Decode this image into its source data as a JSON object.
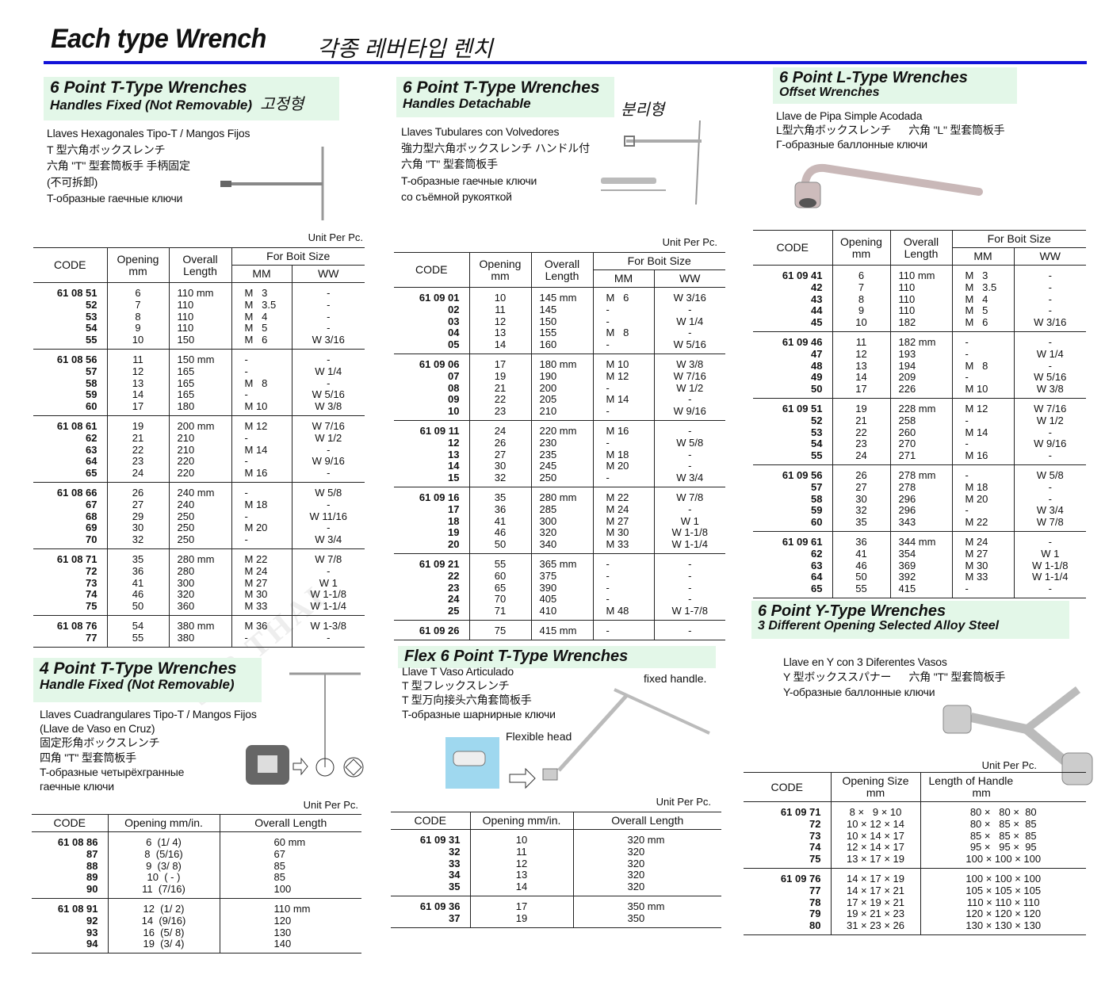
{
  "header": {
    "title": "Each type Wrench",
    "title_ko": "각종 레버타입 렌치"
  },
  "watermark": "32B THAI",
  "colors": {
    "rule": "#1212d8",
    "section_bg": "#e3f7e8"
  },
  "common": {
    "unit": "Unit Per Pc.",
    "code": "CODE",
    "opening": "Opening",
    "mm": "mm",
    "overall": "Overall",
    "length": "Length",
    "bolt": "For Boit Size",
    "MM": "MM",
    "WW": "WW",
    "opening_mmin": "Opening mm/in.",
    "overall_length": "Overall Length"
  },
  "s1": {
    "title": "6 Point T-Type Wrenches",
    "subtitle": "Handles Fixed (Not Removable)",
    "ko": "고정형",
    "desc": [
      "Llaves Hexagonales Tipo-T / Mangos Fijos",
      "T 型六角ボックスレンチ",
      "六角 \"T\" 型套筒板手 手柄固定",
      "(不可拆卸)",
      "T-образные гаечные ключи"
    ],
    "groups": [
      [
        [
          "61 08 51",
          "6",
          "110 mm",
          "M   3",
          "-"
        ],
        [
          "52",
          "7",
          "110",
          "M   3.5",
          "-"
        ],
        [
          "53",
          "8",
          "110",
          "M   4",
          "-"
        ],
        [
          "54",
          "9",
          "110",
          "M   5",
          "-"
        ],
        [
          "55",
          "10",
          "150",
          "M   6",
          "W 3/16"
        ]
      ],
      [
        [
          "61 08 56",
          "11",
          "150 mm",
          "-",
          "-"
        ],
        [
          "57",
          "12",
          "165",
          "-",
          "W 1/4"
        ],
        [
          "58",
          "13",
          "165",
          "M   8",
          "-"
        ],
        [
          "59",
          "14",
          "165",
          "-",
          "W 5/16"
        ],
        [
          "60",
          "17",
          "180",
          "M 10",
          "W 3/8"
        ]
      ],
      [
        [
          "61 08 61",
          "19",
          "200 mm",
          "M 12",
          "W 7/16"
        ],
        [
          "62",
          "21",
          "210",
          "-",
          "W 1/2"
        ],
        [
          "63",
          "22",
          "210",
          "M 14",
          "-"
        ],
        [
          "64",
          "23",
          "220",
          "-",
          "W 9/16"
        ],
        [
          "65",
          "24",
          "220",
          "M 16",
          "-"
        ]
      ],
      [
        [
          "61 08 66",
          "26",
          "240 mm",
          "-",
          "W 5/8"
        ],
        [
          "67",
          "27",
          "240",
          "M 18",
          "-"
        ],
        [
          "68",
          "29",
          "250",
          "-",
          "W 11/16"
        ],
        [
          "69",
          "30",
          "250",
          "M 20",
          "-"
        ],
        [
          "70",
          "32",
          "250",
          "-",
          "W 3/4"
        ]
      ],
      [
        [
          "61 08 71",
          "35",
          "280 mm",
          "M 22",
          "W 7/8"
        ],
        [
          "72",
          "36",
          "280",
          "M 24",
          "-"
        ],
        [
          "73",
          "41",
          "300",
          "M 27",
          "W 1"
        ],
        [
          "74",
          "46",
          "320",
          "M 30",
          "W 1-1/8"
        ],
        [
          "75",
          "50",
          "360",
          "M 33",
          "W 1-1/4"
        ]
      ],
      [
        [
          "61 08 76",
          "54",
          "380 mm",
          "M 36",
          "W 1-3/8"
        ],
        [
          "77",
          "55",
          "380",
          "-",
          "-"
        ]
      ]
    ]
  },
  "s2": {
    "title": "6 Point T-Type Wrenches",
    "subtitle": "Handles Detachable",
    "ko": "분리형",
    "desc": [
      "Llaves Tubulares con Volvedores",
      "強力型六角ボックスレンチ ハンドル付",
      "六角 \"T\" 型套筒板手",
      "T-образные гаечные ключи",
      "со съёмной рукояткой"
    ],
    "groups": [
      [
        [
          "61 09 01",
          "10",
          "145 mm",
          "M   6",
          "W 3/16"
        ],
        [
          "02",
          "11",
          "145",
          "-",
          "-"
        ],
        [
          "03",
          "12",
          "150",
          "-",
          "W 1/4"
        ],
        [
          "04",
          "13",
          "155",
          "M   8",
          "-"
        ],
        [
          "05",
          "14",
          "160",
          "-",
          "W 5/16"
        ]
      ],
      [
        [
          "61 09 06",
          "17",
          "180 mm",
          "M 10",
          "W 3/8"
        ],
        [
          "07",
          "19",
          "190",
          "M 12",
          "W 7/16"
        ],
        [
          "08",
          "21",
          "200",
          "-",
          "W 1/2"
        ],
        [
          "09",
          "22",
          "205",
          "M 14",
          "-"
        ],
        [
          "10",
          "23",
          "210",
          "-",
          "W 9/16"
        ]
      ],
      [
        [
          "61 09 11",
          "24",
          "220 mm",
          "M 16",
          "-"
        ],
        [
          "12",
          "26",
          "230",
          "-",
          "W 5/8"
        ],
        [
          "13",
          "27",
          "235",
          "M 18",
          "-"
        ],
        [
          "14",
          "30",
          "245",
          "M 20",
          "-"
        ],
        [
          "15",
          "32",
          "250",
          "-",
          "W 3/4"
        ]
      ],
      [
        [
          "61 09 16",
          "35",
          "280 mm",
          "M 22",
          "W 7/8"
        ],
        [
          "17",
          "36",
          "285",
          "M 24",
          "-"
        ],
        [
          "18",
          "41",
          "300",
          "M 27",
          "W 1"
        ],
        [
          "19",
          "46",
          "320",
          "M 30",
          "W 1-1/8"
        ],
        [
          "20",
          "50",
          "340",
          "M 33",
          "W 1-1/4"
        ]
      ],
      [
        [
          "61 09 21",
          "55",
          "365 mm",
          "-",
          "-"
        ],
        [
          "22",
          "60",
          "375",
          "-",
          "-"
        ],
        [
          "23",
          "65",
          "390",
          "-",
          "-"
        ],
        [
          "24",
          "70",
          "405",
          "-",
          "-"
        ],
        [
          "25",
          "71",
          "410",
          "M 48",
          "W 1-7/8"
        ]
      ],
      [
        [
          "61 09 26",
          "75",
          "415 mm",
          "-",
          "-"
        ]
      ]
    ]
  },
  "s3": {
    "title": "6 Point L-Type Wrenches",
    "subtitle": "Offset Wrenches",
    "desc": [
      "Llave de Pipa Simple Acodada",
      "L型六角ボックスレンチ      六角 \"L\" 型套筒板手",
      "Г-образные баллонные ключи"
    ],
    "groups": [
      [
        [
          "61 09 41",
          "6",
          "110 mm",
          "M   3",
          "-"
        ],
        [
          "42",
          "7",
          "110",
          "M   3.5",
          "-"
        ],
        [
          "43",
          "8",
          "110",
          "M   4",
          "-"
        ],
        [
          "44",
          "9",
          "110",
          "M   5",
          "-"
        ],
        [
          "45",
          "10",
          "182",
          "M   6",
          "W 3/16"
        ]
      ],
      [
        [
          "61 09 46",
          "11",
          "182 mm",
          "-",
          "-"
        ],
        [
          "47",
          "12",
          "193",
          "-",
          "W 1/4"
        ],
        [
          "48",
          "13",
          "194",
          "M   8",
          "-"
        ],
        [
          "49",
          "14",
          "209",
          "-",
          "W 5/16"
        ],
        [
          "50",
          "17",
          "226",
          "M 10",
          "W 3/8"
        ]
      ],
      [
        [
          "61 09 51",
          "19",
          "228 mm",
          "M 12",
          "W 7/16"
        ],
        [
          "52",
          "21",
          "258",
          "-",
          "W 1/2"
        ],
        [
          "53",
          "22",
          "260",
          "M 14",
          "-"
        ],
        [
          "54",
          "23",
          "270",
          "-",
          "W 9/16"
        ],
        [
          "55",
          "24",
          "271",
          "M 16",
          "-"
        ]
      ],
      [
        [
          "61 09 56",
          "26",
          "278 mm",
          "-",
          "W 5/8"
        ],
        [
          "57",
          "27",
          "278",
          "M 18",
          "-"
        ],
        [
          "58",
          "30",
          "296",
          "M 20",
          "-"
        ],
        [
          "59",
          "32",
          "296",
          "-",
          "W 3/4"
        ],
        [
          "60",
          "35",
          "343",
          "M 22",
          "W 7/8"
        ]
      ],
      [
        [
          "61 09 61",
          "36",
          "344 mm",
          "M 24",
          "-"
        ],
        [
          "62",
          "41",
          "354",
          "M 27",
          "W 1"
        ],
        [
          "63",
          "46",
          "369",
          "M 30",
          "W 1-1/8"
        ],
        [
          "64",
          "50",
          "392",
          "M 33",
          "W 1-1/4"
        ],
        [
          "65",
          "55",
          "415",
          "-",
          "-"
        ]
      ]
    ]
  },
  "s4": {
    "title": "4 Point T-Type Wrenches",
    "subtitle": "Handle Fixed (Not Removable)",
    "desc": [
      "Llaves Cuadrangulares Tipo-T / Mangos Fijos",
      "(Llave de Vaso en Cruz)",
      "固定形角ボックスレンチ",
      "四角 \"T\" 型套筒板手",
      "T-образные четырёхгранные",
      "гаечные ключи"
    ],
    "groups": [
      [
        [
          "61 08 86",
          "6  (1/ 4)",
          "60 mm"
        ],
        [
          "87",
          "8  (5/16)",
          "67"
        ],
        [
          "88",
          "9  (3/ 8)",
          "85"
        ],
        [
          "89",
          "10  ( - )",
          "85"
        ],
        [
          "90",
          "11  (7/16)",
          "100"
        ]
      ],
      [
        [
          "61 08 91",
          "12  (1/ 2)",
          "110 mm"
        ],
        [
          "92",
          "14  (9/16)",
          "120"
        ],
        [
          "93",
          "16  (5/ 8)",
          "130"
        ],
        [
          "94",
          "19  (3/ 4)",
          "140"
        ]
      ]
    ]
  },
  "s5": {
    "title": "Flex 6 Point T-Type Wrenches",
    "desc": [
      "Llave T Vaso Articulado",
      "T 型フレックスレンチ",
      "T 型万向接头六角套筒板手",
      "T-образные шарнирные ключи"
    ],
    "fixed_handle": "fixed handle.",
    "flexible_head": "Flexible head",
    "groups": [
      [
        [
          "61 09 31",
          "10",
          "320 mm"
        ],
        [
          "32",
          "11",
          "320"
        ],
        [
          "33",
          "12",
          "320"
        ],
        [
          "34",
          "13",
          "320"
        ],
        [
          "35",
          "14",
          "320"
        ]
      ],
      [
        [
          "61 09 36",
          "17",
          "350 mm"
        ],
        [
          "37",
          "19",
          "350"
        ]
      ]
    ]
  },
  "s6": {
    "title": "6 Point Y-Type Wrenches",
    "subtitle": "3 Different Opening Selected Alloy Steel",
    "desc": [
      "Llave en Y con 3 Diferentes Vasos",
      "Y 型ボックススパナー      六角 \"T\" 型套筒板手",
      "Y-образные баллонные ключи"
    ],
    "col_opening": "Opening Size",
    "col_length": "Length of Handle",
    "groups": [
      [
        [
          "61 09 71",
          "8 ×   9 × 10",
          "80 ×   80 ×  80"
        ],
        [
          "72",
          "10 × 12 × 14",
          "80 ×   85 ×  85"
        ],
        [
          "73",
          "10 × 14 × 17",
          "85 ×   85 ×  85"
        ],
        [
          "74",
          "12 × 14 × 17",
          "95 ×   95 ×  95"
        ],
        [
          "75",
          "13 × 17 × 19",
          "100 × 100 × 100"
        ]
      ],
      [
        [
          "61 09 76",
          "14 × 17 × 19",
          "100 × 100 × 100"
        ],
        [
          "77",
          "14 × 17 × 21",
          "105 × 105 × 105"
        ],
        [
          "78",
          "17 × 19 × 21",
          "110 × 110 × 110"
        ],
        [
          "79",
          "19 × 21 × 23",
          "120 × 120 × 120"
        ],
        [
          "80",
          "31 × 23 × 26",
          "130 × 130 × 130"
        ]
      ]
    ]
  }
}
